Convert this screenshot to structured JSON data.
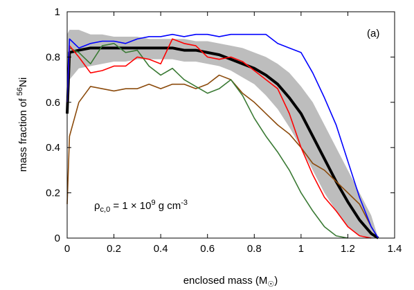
{
  "chart_data": {
    "type": "line",
    "xlabel": [
      "enclosed mass (M",
      "☉",
      ")"
    ],
    "ylabel": [
      "mass fraction of ",
      "56",
      "Ni"
    ],
    "annotation": [
      "ρ",
      "c,0",
      " = 1 × 10",
      "9",
      " g cm",
      "-3"
    ],
    "panel_label": "(a)",
    "xlim": [
      0,
      1.4
    ],
    "xticks": [
      0,
      0.2,
      0.4,
      0.6,
      0.8,
      1,
      1.2,
      1.4
    ],
    "ylim": [
      0,
      1
    ],
    "yticks": [
      0,
      0.2,
      0.4,
      0.6,
      0.8,
      1
    ],
    "x": [
      0,
      0.01,
      0.05,
      0.1,
      0.15,
      0.2,
      0.25,
      0.3,
      0.35,
      0.4,
      0.45,
      0.5,
      0.55,
      0.6,
      0.65,
      0.7,
      0.75,
      0.8,
      0.85,
      0.9,
      0.95,
      1.0,
      1.05,
      1.1,
      1.15,
      1.2,
      1.25,
      1.3,
      1.33
    ],
    "band": {
      "color": "#bdbdbd",
      "upper": [
        0.9,
        0.92,
        0.92,
        0.9,
        0.9,
        0.89,
        0.89,
        0.89,
        0.88,
        0.88,
        0.88,
        0.88,
        0.87,
        0.87,
        0.86,
        0.85,
        0.84,
        0.82,
        0.8,
        0.77,
        0.73,
        0.67,
        0.6,
        0.5,
        0.4,
        0.3,
        0.2,
        0.1,
        0
      ],
      "lower": [
        0.6,
        0.7,
        0.75,
        0.76,
        0.77,
        0.78,
        0.78,
        0.79,
        0.79,
        0.79,
        0.79,
        0.78,
        0.78,
        0.77,
        0.76,
        0.74,
        0.71,
        0.68,
        0.63,
        0.57,
        0.49,
        0.4,
        0.3,
        0.2,
        0.12,
        0.05,
        0.01,
        0,
        0
      ]
    },
    "series": [
      {
        "color": "#000000",
        "width": 4,
        "values": [
          0.55,
          0.82,
          0.83,
          0.84,
          0.84,
          0.84,
          0.84,
          0.84,
          0.84,
          0.84,
          0.84,
          0.83,
          0.83,
          0.82,
          0.81,
          0.79,
          0.77,
          0.75,
          0.72,
          0.68,
          0.62,
          0.55,
          0.45,
          0.35,
          0.25,
          0.16,
          0.08,
          0.02,
          0
        ]
      },
      {
        "color": "#8b4a0b",
        "width": 1.6,
        "values": [
          0.15,
          0.45,
          0.6,
          0.67,
          0.66,
          0.65,
          0.66,
          0.66,
          0.68,
          0.66,
          0.68,
          0.68,
          0.66,
          0.68,
          0.72,
          0.7,
          0.64,
          0.6,
          0.55,
          0.5,
          0.46,
          0.4,
          0.33,
          0.3,
          0.25,
          0.2,
          0.15,
          0.05,
          0
        ]
      },
      {
        "color": "#3a7a34",
        "width": 1.6,
        "values": [
          0.6,
          0.84,
          0.82,
          0.77,
          0.85,
          0.86,
          0.82,
          0.83,
          0.76,
          0.72,
          0.75,
          0.7,
          0.67,
          0.64,
          0.66,
          0.7,
          0.63,
          0.53,
          0.45,
          0.38,
          0.3,
          0.2,
          0.12,
          0.05,
          0.01,
          0,
          null,
          null,
          null
        ]
      },
      {
        "color": "#ff0000",
        "width": 1.6,
        "values": [
          0.6,
          0.85,
          0.8,
          0.73,
          0.74,
          0.76,
          0.76,
          0.8,
          0.79,
          0.77,
          0.88,
          0.86,
          0.85,
          0.8,
          0.79,
          0.8,
          0.78,
          0.74,
          0.7,
          0.66,
          0.55,
          0.4,
          0.28,
          0.18,
          0.12,
          0.05,
          0.01,
          0,
          null
        ]
      },
      {
        "color": "#0000ff",
        "width": 1.6,
        "values": [
          0.6,
          0.88,
          0.84,
          0.86,
          0.87,
          0.87,
          0.86,
          0.88,
          0.89,
          0.89,
          0.9,
          0.89,
          0.9,
          0.9,
          0.89,
          0.9,
          0.9,
          0.9,
          0.9,
          0.86,
          0.84,
          0.82,
          0.73,
          0.62,
          0.5,
          0.34,
          0.18,
          0.05,
          0
        ]
      }
    ]
  }
}
